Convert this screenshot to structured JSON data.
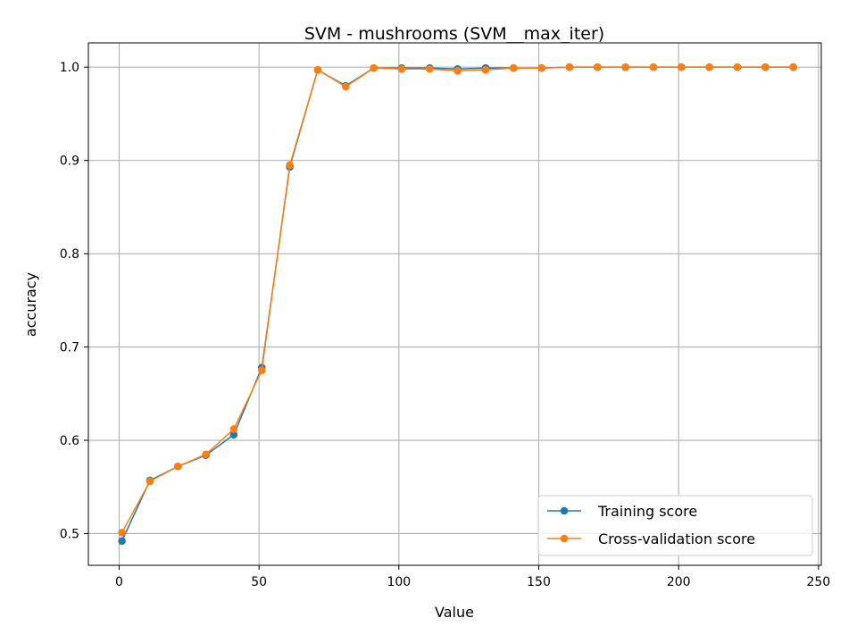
{
  "chart_data": {
    "type": "line",
    "title": "SVM - mushrooms (SVM__max_iter)",
    "xlabel": "Value",
    "ylabel": "accuracy",
    "xlim": [
      -11,
      251
    ],
    "ylim": [
      0.466,
      1.026
    ],
    "xticks": [
      0,
      50,
      100,
      150,
      200,
      250
    ],
    "yticks": [
      0.5,
      0.6,
      0.7,
      0.8,
      0.9,
      1.0
    ],
    "xtick_labels": [
      "0",
      "50",
      "100",
      "150",
      "200",
      "250"
    ],
    "ytick_labels": [
      "0.5",
      "0.6",
      "0.7",
      "0.8",
      "0.9",
      "1.0"
    ],
    "grid": true,
    "legend_position": "lower-right",
    "x": [
      1,
      11,
      21,
      31,
      41,
      51,
      61,
      71,
      81,
      91,
      101,
      111,
      121,
      131,
      141,
      151,
      161,
      171,
      181,
      191,
      201,
      211,
      221,
      231,
      241
    ],
    "series": [
      {
        "name": "Training score",
        "color": "#1f77b4",
        "values": [
          0.492,
          0.557,
          0.572,
          0.584,
          0.606,
          0.678,
          0.893,
          0.997,
          0.98,
          0.999,
          0.999,
          0.999,
          0.998,
          0.999,
          0.999,
          0.999,
          1.0,
          1.0,
          1.0,
          1.0,
          1.0,
          1.0,
          1.0,
          1.0,
          1.0
        ]
      },
      {
        "name": "Cross-validation score",
        "color": "#ff7f0e",
        "values": [
          0.501,
          0.556,
          0.572,
          0.585,
          0.612,
          0.675,
          0.895,
          0.997,
          0.979,
          0.999,
          0.998,
          0.998,
          0.996,
          0.997,
          0.999,
          0.999,
          1.0,
          1.0,
          1.0,
          1.0,
          1.0,
          1.0,
          1.0,
          1.0,
          1.0
        ]
      }
    ]
  }
}
